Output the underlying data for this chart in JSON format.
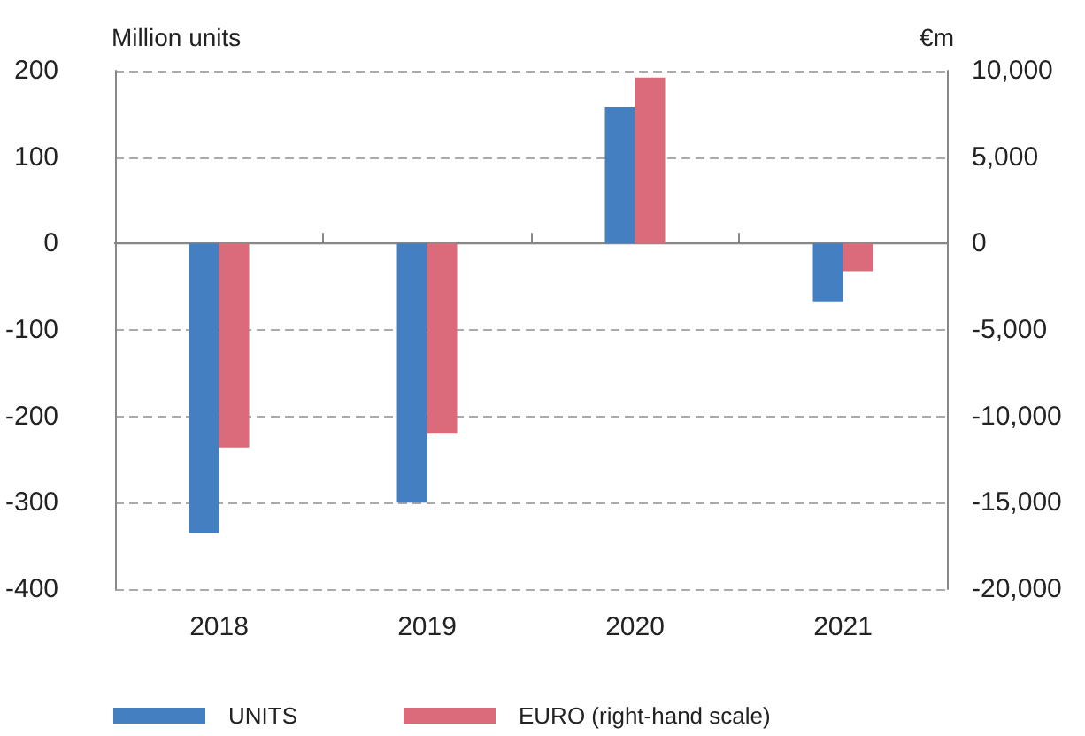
{
  "chart_data": {
    "type": "bar",
    "ylabel": "Million units",
    "y2label": "€m",
    "categories": [
      "2018",
      "2019",
      "2020",
      "2021"
    ],
    "series": [
      {
        "name": "UNITS",
        "color": "#437fc1",
        "values": [
          -335,
          -300,
          158,
          -67
        ]
      },
      {
        "name": "EURO (right-hand scale)",
        "color": "#db6b7a",
        "axis": "y2",
        "values": [
          -11800,
          -11000,
          9600,
          -1600
        ]
      }
    ],
    "ylim": [
      -400,
      200
    ],
    "yticks": [
      -400,
      -300,
      -200,
      -100,
      0,
      100,
      200
    ],
    "y2lim": [
      -20000,
      10000
    ],
    "y2ticks": [
      {
        "value": -20000,
        "label": "-20,000"
      },
      {
        "value": -15000,
        "label": "-15,000"
      },
      {
        "value": -10000,
        "label": "-10,000"
      },
      {
        "value": -5000,
        "label": "-5,000"
      },
      0,
      {
        "value": 5000,
        "label": "5,000"
      },
      {
        "value": 10000,
        "label": "10,000"
      }
    ],
    "grid": "y",
    "legend": "bottom left"
  }
}
